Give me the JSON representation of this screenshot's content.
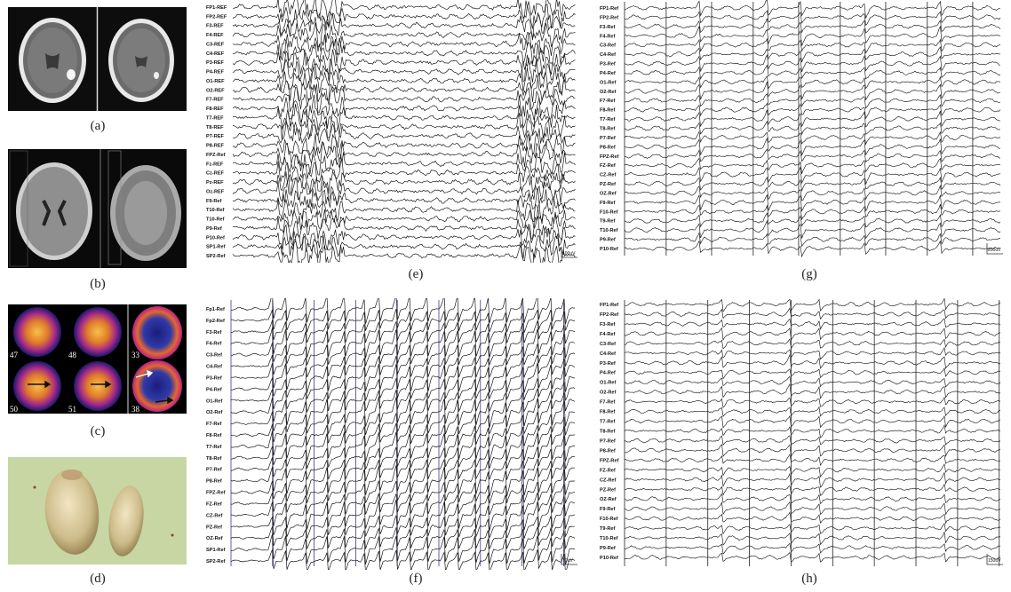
{
  "figure": {
    "captions": {
      "a": "(a)",
      "b": "(b)",
      "c": "(c)",
      "d": "(d)",
      "e": "(e)",
      "f": "(f)",
      "g": "(g)",
      "h": "(h)"
    },
    "pet_slice_numbers": [
      "47",
      "48",
      "33",
      "50",
      "51",
      "38"
    ],
    "eeg_e": {
      "channels": [
        "FP1-REF",
        "FP2-REF",
        "F3-REF",
        "F4-REF",
        "C3-REF",
        "C4-REF",
        "P3-REF",
        "P4-REF",
        "O1-REF",
        "O2-REF",
        "F7-REF",
        "F8-REF",
        "T7-REF",
        "T8-REF",
        "P7-REF",
        "P8-REF",
        "FPZ-Ref",
        "Fz-REF",
        "Cz-REF",
        "Pz-REF",
        "Oz-REF",
        "F9-Ref",
        "T10-Ref",
        "T10-Ref",
        "P9-Ref",
        "P10-Ref",
        "SP1-Ref",
        "SP2-Ref"
      ],
      "scale": "100uV"
    },
    "eeg_f": {
      "channels": [
        "Fp1-Ref",
        "Fp2-Ref",
        "F3-Ref",
        "F4-Ref",
        "C3-Ref",
        "C4-Ref",
        "P3-Ref",
        "P4-Ref",
        "O1-Ref",
        "O2-Ref",
        "F7-Ref",
        "F8-Ref",
        "T7-Ref",
        "T8-Ref",
        "P7-Ref",
        "P8-Ref",
        "FPZ-Ref",
        "FZ-Ref",
        "CZ-Ref",
        "PZ-Ref",
        "OZ-Ref",
        "SP1-Ref",
        "SP2-Ref"
      ],
      "scale": "70uV"
    },
    "eeg_g": {
      "channels": [
        "FP1-Ref",
        "FP2-Ref",
        "F3-Ref",
        "F4-Ref",
        "C3-Ref",
        "C4-Ref",
        "P3-Ref",
        "P4-Ref",
        "O1-Ref",
        "O2-Ref",
        "F7-Ref",
        "F8-Ref",
        "T7-Ref",
        "T8-Ref",
        "P7-Ref",
        "P8-Ref",
        "FPZ-Ref",
        "FZ-Ref",
        "CZ-Ref",
        "PZ-Ref",
        "OZ-Ref",
        "F9-Ref",
        "F10-Ref",
        "T9-Ref",
        "T10-Ref",
        "P9-Ref",
        "P10-Ref"
      ],
      "scale": "200uV"
    },
    "eeg_h": {
      "channels": [
        "FP1-Ref",
        "FP2-Ref",
        "F3-Ref",
        "F4-Ref",
        "C3-Ref",
        "C4-Ref",
        "P3-Ref",
        "P4-Ref",
        "O1-Ref",
        "O2-Ref",
        "F7-Ref",
        "F8-Ref",
        "T7-Ref",
        "T8-Ref",
        "P7-Ref",
        "P8-Ref",
        "FPZ-Ref",
        "FZ-Ref",
        "CZ-Ref",
        "PZ-Ref",
        "OZ-Ref",
        "F9-Ref",
        "F10-Ref",
        "T9-Ref",
        "T10-Ref",
        "P9-Ref",
        "P10-Ref"
      ],
      "scale": "150uV"
    }
  }
}
